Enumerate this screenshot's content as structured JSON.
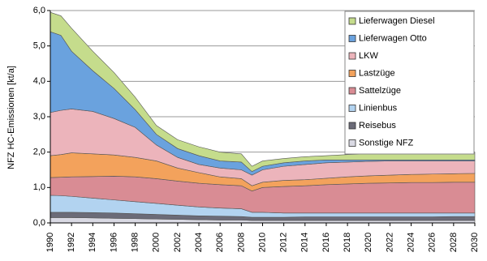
{
  "chart_data": {
    "type": "stacked-area",
    "ylabel": "NFZ HC-Emissionen  [kt/a]",
    "x": [
      1990,
      1991,
      1992,
      1994,
      1996,
      1998,
      2000,
      2002,
      2004,
      2006,
      2008,
      2009,
      2010,
      2012,
      2014,
      2016,
      2018,
      2020,
      2022,
      2024,
      2026,
      2028,
      2030
    ],
    "xlim": [
      1990,
      2030
    ],
    "xticks": [
      1990,
      1992,
      1994,
      1996,
      1998,
      2000,
      2002,
      2004,
      2006,
      2008,
      2010,
      2012,
      2014,
      2016,
      2018,
      2020,
      2022,
      2024,
      2026,
      2028,
      2030
    ],
    "ylim": [
      0,
      6
    ],
    "yticks": [
      {
        "value": 0,
        "label": "0,0"
      },
      {
        "value": 1,
        "label": "1,0"
      },
      {
        "value": 2,
        "label": "2,0"
      },
      {
        "value": 3,
        "label": "3,0"
      },
      {
        "value": 4,
        "label": "4,0"
      },
      {
        "value": 5,
        "label": "5,0"
      },
      {
        "value": 6,
        "label": "6,0"
      }
    ],
    "grid": true,
    "legend": "top-right",
    "series": [
      {
        "name": "Sonstige NFZ",
        "color": "#d9d9e3",
        "values": [
          0.15,
          0.15,
          0.15,
          0.14,
          0.13,
          0.12,
          0.11,
          0.1,
          0.09,
          0.08,
          0.08,
          0.07,
          0.07,
          0.07,
          0.07,
          0.07,
          0.07,
          0.07,
          0.07,
          0.07,
          0.07,
          0.07,
          0.07
        ]
      },
      {
        "name": "Reisebus",
        "color": "#6b6b78",
        "values": [
          0.15,
          0.15,
          0.15,
          0.15,
          0.15,
          0.14,
          0.13,
          0.12,
          0.11,
          0.11,
          0.1,
          0.09,
          0.09,
          0.09,
          0.1,
          0.1,
          0.1,
          0.1,
          0.1,
          0.1,
          0.1,
          0.11,
          0.11
        ]
      },
      {
        "name": "Linienbus",
        "color": "#b2d3f0",
        "values": [
          0.48,
          0.47,
          0.45,
          0.41,
          0.37,
          0.34,
          0.31,
          0.28,
          0.25,
          0.23,
          0.22,
          0.14,
          0.14,
          0.12,
          0.11,
          0.11,
          0.11,
          0.11,
          0.11,
          0.11,
          0.11,
          0.1,
          0.1
        ]
      },
      {
        "name": "Sattelzüge",
        "color": "#d98c94",
        "values": [
          0.5,
          0.52,
          0.55,
          0.61,
          0.67,
          0.7,
          0.7,
          0.68,
          0.67,
          0.66,
          0.65,
          0.6,
          0.7,
          0.75,
          0.77,
          0.8,
          0.82,
          0.84,
          0.85,
          0.86,
          0.86,
          0.87,
          0.87
        ]
      },
      {
        "name": "Lastzüge",
        "color": "#f3a25c",
        "values": [
          0.62,
          0.64,
          0.68,
          0.64,
          0.6,
          0.55,
          0.5,
          0.37,
          0.3,
          0.22,
          0.2,
          0.15,
          0.15,
          0.17,
          0.17,
          0.18,
          0.2,
          0.21,
          0.22,
          0.23,
          0.24,
          0.24,
          0.25
        ]
      },
      {
        "name": "LKW",
        "color": "#ecb4bb",
        "values": [
          1.22,
          1.25,
          1.24,
          1.2,
          1.03,
          0.85,
          0.45,
          0.3,
          0.23,
          0.25,
          0.25,
          0.3,
          0.35,
          0.4,
          0.43,
          0.44,
          0.42,
          0.41,
          0.4,
          0.38,
          0.37,
          0.36,
          0.35
        ]
      },
      {
        "name": "Lieferwagen Otto",
        "color": "#6aa2de",
        "values": [
          2.28,
          2.12,
          1.63,
          1.15,
          0.85,
          0.5,
          0.3,
          0.25,
          0.25,
          0.2,
          0.22,
          0.1,
          0.1,
          0.1,
          0.1,
          0.08,
          0.06,
          0.04,
          0.03,
          0.03,
          0.03,
          0.03,
          0.03
        ]
      },
      {
        "name": "Lieferwagen Diesel",
        "color": "#c5dc8c",
        "values": [
          0.55,
          0.55,
          0.65,
          0.55,
          0.45,
          0.35,
          0.25,
          0.25,
          0.25,
          0.25,
          0.23,
          0.15,
          0.15,
          0.12,
          0.12,
          0.12,
          0.15,
          0.17,
          0.18,
          0.19,
          0.2,
          0.21,
          0.22
        ]
      }
    ]
  }
}
